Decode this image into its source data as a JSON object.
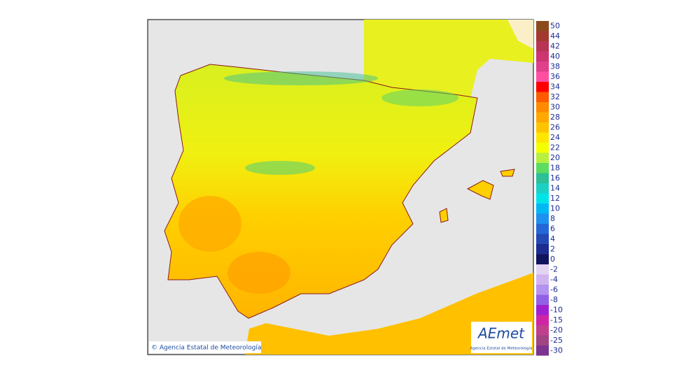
{
  "legend": {
    "positive": [
      {
        "value": 50,
        "color": "#8b4a1c"
      },
      {
        "value": 44,
        "color": "#a33a30"
      },
      {
        "value": 42,
        "color": "#b83455"
      },
      {
        "value": 40,
        "color": "#cc3572"
      },
      {
        "value": 38,
        "color": "#e03f8c"
      },
      {
        "value": 36,
        "color": "#ff4fa3"
      },
      {
        "value": 34,
        "color": "#ff0000"
      },
      {
        "value": 32,
        "color": "#ff5a00"
      },
      {
        "value": 30,
        "color": "#ff8a00"
      },
      {
        "value": 28,
        "color": "#ffa800"
      },
      {
        "value": 26,
        "color": "#ffc400"
      },
      {
        "value": 24,
        "color": "#ffe600"
      },
      {
        "value": 22,
        "color": "#f4ff00"
      },
      {
        "value": 20,
        "color": "#b8f040"
      },
      {
        "value": 18,
        "color": "#5cdc60"
      },
      {
        "value": 16,
        "color": "#2cc096"
      },
      {
        "value": 14,
        "color": "#1cd0c4"
      },
      {
        "value": 12,
        "color": "#00e4e8"
      },
      {
        "value": 10,
        "color": "#00b8f4"
      },
      {
        "value": 8,
        "color": "#1e90f0"
      },
      {
        "value": 6,
        "color": "#2468d8"
      },
      {
        "value": 4,
        "color": "#2448b4"
      },
      {
        "value": 2,
        "color": "#1c2c90"
      },
      {
        "value": 0,
        "color": "#10145c"
      }
    ],
    "negative": [
      {
        "value": -2,
        "color": "#e4d4f4"
      },
      {
        "value": -4,
        "color": "#d0b4f0"
      },
      {
        "value": -6,
        "color": "#b492f0"
      },
      {
        "value": -8,
        "color": "#9260e4"
      },
      {
        "value": -10,
        "color": "#a020d0"
      },
      {
        "value": -15,
        "color": "#d024a4"
      },
      {
        "value": -20,
        "color": "#c0408e"
      },
      {
        "value": -25,
        "color": "#a04482"
      },
      {
        "value": -30,
        "color": "#7c3490"
      }
    ]
  },
  "footer": {
    "copyright": "© Agencia Estatal de Meteorología"
  },
  "logo": {
    "name": "AEmet",
    "subtitle": "Agencia Estatal de Meteorología"
  }
}
